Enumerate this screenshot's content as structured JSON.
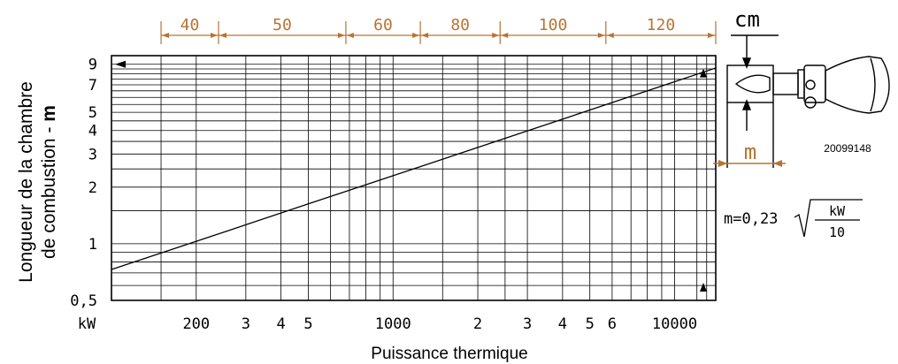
{
  "chart_data": {
    "type": "line",
    "title": "",
    "xlabel": "Puissance thermique",
    "xunit": "kW",
    "ylabel_line1": "Longueur de la chambre",
    "ylabel_line2_text": "de combustion - ",
    "ylabel_line2_bold": "m",
    "x_scale": "log",
    "y_scale": "log",
    "xlim": [
      100,
      14000
    ],
    "ylim": [
      0.5,
      10
    ],
    "x_tick_labels": [
      {
        "x": 200,
        "label": "200"
      },
      {
        "x": 300,
        "label": "3"
      },
      {
        "x": 400,
        "label": "4"
      },
      {
        "x": 500,
        "label": "5"
      },
      {
        "x": 1000,
        "label": "1000"
      },
      {
        "x": 2000,
        "label": "2"
      },
      {
        "x": 3000,
        "label": "3"
      },
      {
        "x": 4000,
        "label": "4"
      },
      {
        "x": 5000,
        "label": "5"
      },
      {
        "x": 6000,
        "label": "6"
      },
      {
        "x": 10000,
        "label": "10000"
      }
    ],
    "y_tick_labels": [
      {
        "y": 0.5,
        "label": "0,5"
      },
      {
        "y": 1,
        "label": "1"
      },
      {
        "y": 2,
        "label": "2"
      },
      {
        "y": 3,
        "label": "3"
      },
      {
        "y": 4,
        "label": "4"
      },
      {
        "y": 5,
        "label": "5"
      },
      {
        "y": 7,
        "label": "7"
      },
      {
        "y": 9,
        "label": "9"
      }
    ],
    "series": [
      {
        "x": [
          100,
          200,
          500,
          1000,
          2000,
          5000,
          10000,
          14000
        ],
        "y": [
          0.73,
          1.03,
          1.63,
          2.3,
          3.25,
          5.14,
          7.27,
          8.6
        ]
      }
    ],
    "diameter_scale": {
      "unit": "cm",
      "segments": [
        {
          "from": 150,
          "to": 240,
          "label": "40"
        },
        {
          "from": 240,
          "to": 680,
          "label": "50"
        },
        {
          "from": 680,
          "to": 1250,
          "label": "60"
        },
        {
          "from": 1250,
          "to": 2400,
          "label": "80"
        },
        {
          "from": 2400,
          "to": 5700,
          "label": "100"
        },
        {
          "from": 5700,
          "to": 14000,
          "label": "120"
        }
      ]
    },
    "formula": {
      "lhs": "m=0,23",
      "numerator": "kW",
      "denominator": "10"
    },
    "drawing_code": "20099148",
    "length_label": "m",
    "line_color": "#000000",
    "accent_color": "#b87333",
    "grid": true
  }
}
